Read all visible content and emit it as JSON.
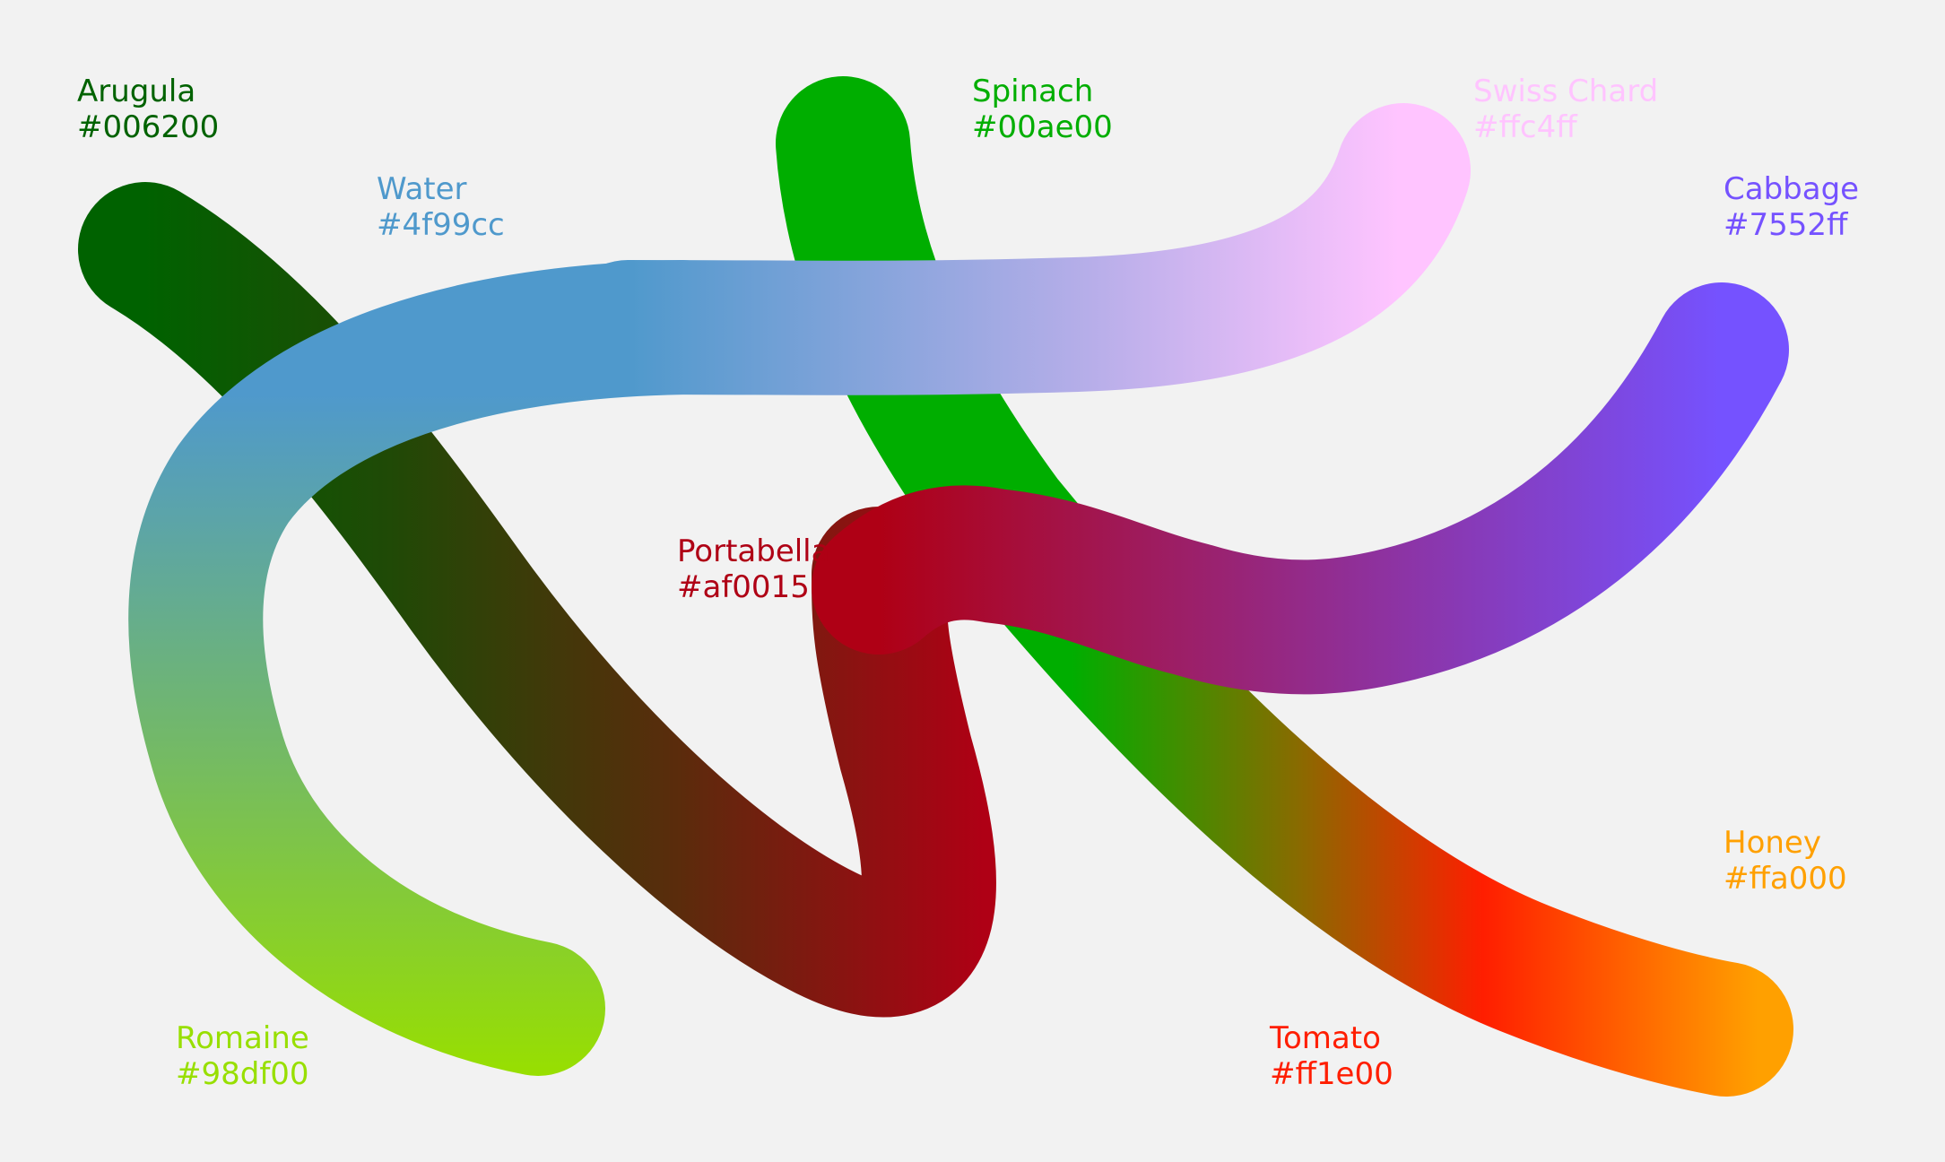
{
  "swatches": {
    "arugula": {
      "name": "Arugula",
      "hex": "#006200",
      "color": "#006200"
    },
    "water": {
      "name": "Water",
      "hex": "#4f99cc",
      "color": "#4f99cc"
    },
    "spinach": {
      "name": "Spinach",
      "hex": "#00ae00",
      "color": "#00ae00"
    },
    "swiss_chard": {
      "name": "Swiss Chard",
      "hex": "#ffc4ff",
      "color": "#ffc4ff"
    },
    "cabbage": {
      "name": "Cabbage",
      "hex": "#7552ff",
      "color": "#7552ff"
    },
    "portabella": {
      "name": "Portabella",
      "hex": "#af0015",
      "color": "#af0015"
    },
    "honey": {
      "name": "Honey",
      "hex": "#ffa000",
      "color": "#ffa000"
    },
    "romaine": {
      "name": "Romaine",
      "hex": "#98df00",
      "color": "#98df00"
    },
    "tomato": {
      "name": "Tomato",
      "hex": "#ff1e00",
      "color": "#ff1e00"
    }
  },
  "background": "#f2f2f2"
}
